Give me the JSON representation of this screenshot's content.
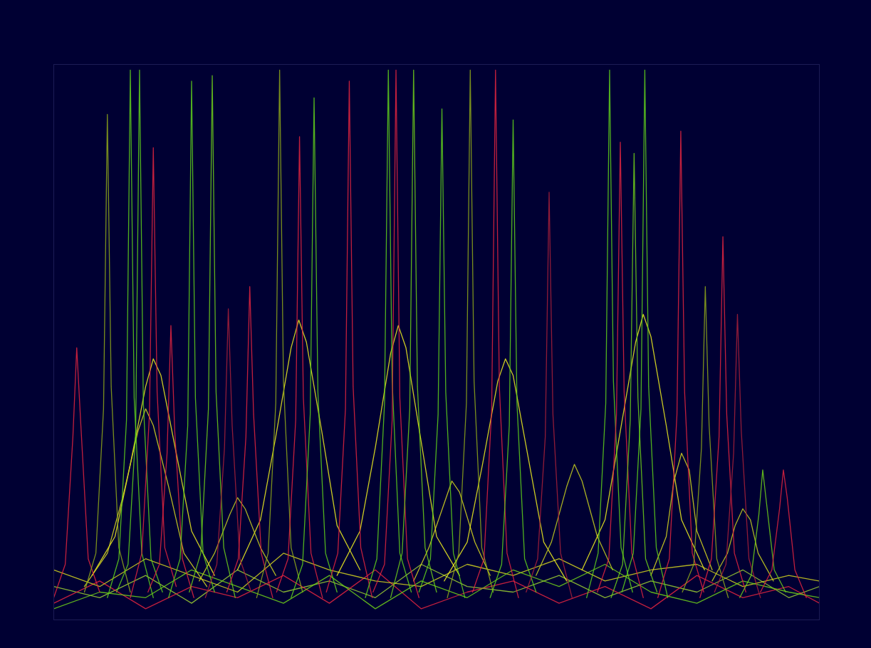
{
  "chart_data": {
    "type": "line",
    "xlim": [
      0,
      100
    ],
    "ylim": [
      0,
      100
    ],
    "tick_labels": false,
    "series": [
      {
        "color": "#9acd32",
        "x": [
          0,
          6,
          12,
          18,
          24,
          30,
          36,
          42,
          48,
          54,
          60,
          66,
          72,
          78,
          84,
          90,
          96,
          100
        ],
        "values": [
          6,
          4,
          8,
          3,
          9,
          5,
          7,
          4,
          10,
          6,
          5,
          8,
          4,
          7,
          5,
          9,
          4,
          6
        ]
      },
      {
        "color": "#e3243f",
        "x": [
          0,
          6,
          12,
          18,
          24,
          30,
          36,
          42,
          48,
          54,
          60,
          66,
          72,
          78,
          84,
          90,
          96,
          100
        ],
        "values": [
          3,
          7,
          2,
          6,
          4,
          8,
          3,
          9,
          2,
          5,
          7,
          3,
          6,
          2,
          8,
          4,
          6,
          3
        ]
      },
      {
        "color": "#d4d420",
        "x": [
          0,
          6,
          12,
          18,
          24,
          30,
          36,
          42,
          48,
          54,
          60,
          66,
          72,
          78,
          84,
          90,
          96,
          100
        ],
        "values": [
          9,
          6,
          11,
          8,
          5,
          12,
          9,
          7,
          6,
          10,
          8,
          11,
          7,
          9,
          10,
          6,
          8,
          7
        ]
      },
      {
        "color": "#6fcf1a",
        "x": [
          0,
          6,
          12,
          18,
          24,
          30,
          36,
          42,
          48,
          54,
          60,
          66,
          72,
          78,
          84,
          90,
          96,
          100
        ],
        "values": [
          2,
          5,
          4,
          9,
          6,
          3,
          8,
          2,
          7,
          4,
          9,
          6,
          10,
          5,
          3,
          7,
          5,
          4
        ]
      },
      {
        "color": "#f0f020",
        "x": [
          5,
          8,
          10,
          12,
          13,
          14,
          16,
          18,
          21
        ],
        "values": [
          8,
          15,
          28,
          42,
          47,
          44,
          30,
          16,
          8
        ]
      },
      {
        "color": "#d8d820",
        "x": [
          4,
          7,
          9,
          11,
          12,
          13,
          15,
          17,
          20
        ],
        "values": [
          6,
          12,
          22,
          34,
          38,
          35,
          24,
          12,
          6
        ]
      },
      {
        "color": "#f0f020",
        "x": [
          24,
          27,
          29,
          31,
          32,
          33,
          35,
          37,
          40
        ],
        "values": [
          9,
          18,
          33,
          49,
          54,
          50,
          34,
          17,
          9
        ]
      },
      {
        "color": "#c8d020",
        "x": [
          19,
          21,
          23,
          24,
          25,
          27,
          29
        ],
        "values": [
          7,
          12,
          19,
          22,
          20,
          13,
          8
        ]
      },
      {
        "color": "#f0f020",
        "x": [
          37,
          40,
          42,
          44,
          45,
          46,
          48,
          50,
          53
        ],
        "values": [
          8,
          16,
          31,
          48,
          53,
          49,
          32,
          15,
          8
        ]
      },
      {
        "color": "#d8d820",
        "x": [
          47,
          49,
          51,
          52,
          53,
          55,
          57
        ],
        "values": [
          7,
          13,
          21,
          25,
          23,
          14,
          8
        ]
      },
      {
        "color": "#f0f020",
        "x": [
          51,
          54,
          56,
          58,
          59,
          60,
          62,
          64,
          67
        ],
        "values": [
          7,
          14,
          28,
          43,
          47,
          44,
          29,
          14,
          7
        ]
      },
      {
        "color": "#c8d020",
        "x": [
          63,
          65,
          67,
          68,
          69,
          71,
          73
        ],
        "values": [
          8,
          14,
          24,
          28,
          25,
          15,
          9
        ]
      },
      {
        "color": "#f0f020",
        "x": [
          69,
          72,
          74,
          76,
          77,
          78,
          80,
          82,
          85
        ],
        "values": [
          9,
          18,
          34,
          50,
          55,
          51,
          35,
          18,
          9
        ]
      },
      {
        "color": "#d8d820",
        "x": [
          78,
          80,
          81,
          82,
          83,
          84,
          86
        ],
        "values": [
          8,
          15,
          25,
          30,
          27,
          16,
          9
        ]
      },
      {
        "color": "#c8d020",
        "x": [
          86,
          88,
          89,
          90,
          91,
          92,
          94
        ],
        "values": [
          7,
          12,
          17,
          20,
          18,
          12,
          7
        ]
      },
      {
        "color": "#e3243f",
        "x": [
          0,
          1.5,
          2.5,
          3,
          3.5,
          4.5,
          6
        ],
        "values": [
          4,
          10,
          33,
          49,
          36,
          11,
          5
        ]
      },
      {
        "color": "#8fa81a",
        "x": [
          4,
          5.5,
          6.5,
          7,
          7.5,
          8.5,
          10
        ],
        "values": [
          5,
          12,
          38,
          91,
          42,
          13,
          5
        ]
      },
      {
        "color": "#5fd01c",
        "x": [
          7,
          8.5,
          9.5,
          10,
          10.5,
          11.5,
          13
        ],
        "values": [
          4,
          11,
          36,
          99,
          40,
          12,
          4
        ]
      },
      {
        "color": "#5fd01c",
        "x": [
          8.2,
          9.7,
          10.7,
          11.2,
          11.7,
          12.7,
          14.2
        ],
        "values": [
          5,
          10,
          34,
          99,
          39,
          11,
          5
        ]
      },
      {
        "color": "#e3243f",
        "x": [
          10,
          11.5,
          12.5,
          13,
          13.5,
          14.5,
          16
        ],
        "values": [
          4,
          12,
          37,
          85,
          41,
          13,
          6
        ]
      },
      {
        "color": "#e3243f",
        "x": [
          12.3,
          13.8,
          14.8,
          15.3,
          15.8,
          16.8,
          18.3
        ],
        "values": [
          5,
          10,
          30,
          53,
          34,
          11,
          4
        ]
      },
      {
        "color": "#5fd01c",
        "x": [
          15,
          16.5,
          17.5,
          18,
          18.5,
          19.5,
          21
        ],
        "values": [
          4,
          11,
          35,
          97,
          40,
          12,
          5
        ]
      },
      {
        "color": "#6fcf1a",
        "x": [
          17.7,
          19.2,
          20.2,
          20.7,
          21.2,
          22.2,
          23.7
        ],
        "values": [
          5,
          12,
          38,
          98,
          41,
          13,
          4
        ]
      },
      {
        "color": "#a8203a",
        "x": [
          19.8,
          21.3,
          22.3,
          22.8,
          23.3,
          24.3,
          25.8
        ],
        "values": [
          4,
          10,
          31,
          56,
          35,
          11,
          5
        ]
      },
      {
        "color": "#e3243f",
        "x": [
          22.6,
          24.1,
          25.1,
          25.6,
          26.1,
          27.1,
          28.6
        ],
        "values": [
          5,
          11,
          33,
          60,
          37,
          12,
          4
        ]
      },
      {
        "color": "#8fa81a",
        "x": [
          26.5,
          28,
          29,
          29.5,
          30,
          31,
          32.5
        ],
        "values": [
          4,
          12,
          39,
          99,
          43,
          13,
          5
        ]
      },
      {
        "color": "#e3243f",
        "x": [
          29.1,
          30.6,
          31.6,
          32.1,
          32.6,
          33.6,
          35.1
        ],
        "values": [
          5,
          11,
          36,
          87,
          40,
          12,
          4
        ]
      },
      {
        "color": "#5fd01c",
        "x": [
          31,
          32.5,
          33.5,
          34,
          34.5,
          35.5,
          37
        ],
        "values": [
          4,
          10,
          37,
          94,
          41,
          12,
          5
        ]
      },
      {
        "color": "#e3243f",
        "x": [
          35.6,
          37.1,
          38.1,
          38.6,
          39.1,
          40.1,
          41.6
        ],
        "values": [
          5,
          12,
          38,
          97,
          42,
          13,
          4
        ]
      },
      {
        "color": "#5fd01c",
        "x": [
          40.7,
          42.2,
          43.2,
          43.7,
          44.2,
          45.2,
          46.7
        ],
        "values": [
          4,
          11,
          39,
          99,
          43,
          12,
          5
        ]
      },
      {
        "color": "#e3243f",
        "x": [
          41.7,
          43.2,
          44.2,
          44.7,
          45.2,
          46.2,
          47.7
        ],
        "values": [
          5,
          10,
          36,
          99,
          40,
          11,
          4
        ]
      },
      {
        "color": "#6fcf1a",
        "x": [
          44,
          45.5,
          46.5,
          47,
          47.5,
          48.5,
          50
        ],
        "values": [
          4,
          12,
          38,
          99,
          42,
          13,
          5
        ]
      },
      {
        "color": "#5fd01c",
        "x": [
          47.7,
          49.2,
          50.2,
          50.7,
          51.2,
          52.2,
          53.7
        ],
        "values": [
          5,
          11,
          37,
          92,
          41,
          12,
          4
        ]
      },
      {
        "color": "#8fa81a",
        "x": [
          51.4,
          52.9,
          53.9,
          54.4,
          54.9,
          55.9,
          57.4
        ],
        "values": [
          4,
          12,
          39,
          99,
          43,
          13,
          5
        ]
      },
      {
        "color": "#e3243f",
        "x": [
          54.7,
          56.2,
          57.2,
          57.7,
          58.2,
          59.2,
          60.7
        ],
        "values": [
          5,
          11,
          38,
          99,
          42,
          12,
          4
        ]
      },
      {
        "color": "#5fd01c",
        "x": [
          57,
          58.5,
          59.5,
          60,
          60.5,
          61.5,
          63
        ],
        "values": [
          4,
          10,
          35,
          90,
          39,
          11,
          5
        ]
      },
      {
        "color": "#a8203a",
        "x": [
          61.7,
          63.2,
          64.2,
          64.7,
          65.2,
          66.2,
          67.7
        ],
        "values": [
          5,
          11,
          33,
          77,
          37,
          12,
          4
        ]
      },
      {
        "color": "#5fd01c",
        "x": [
          69.6,
          71.1,
          72.1,
          72.6,
          73.1,
          74.1,
          75.6
        ],
        "values": [
          4,
          12,
          39,
          99,
          43,
          13,
          5
        ]
      },
      {
        "color": "#e3243f",
        "x": [
          71,
          72.5,
          73.5,
          74,
          74.5,
          75.5,
          77
        ],
        "values": [
          5,
          11,
          37,
          86,
          41,
          12,
          4
        ]
      },
      {
        "color": "#6fcf1a",
        "x": [
          72.8,
          74.3,
          75.3,
          75.8,
          76.3,
          77.3,
          78.8
        ],
        "values": [
          4,
          10,
          36,
          84,
          40,
          11,
          5
        ]
      },
      {
        "color": "#5fd01c",
        "x": [
          74.2,
          75.7,
          76.7,
          77.2,
          77.7,
          78.7,
          80.2
        ],
        "values": [
          5,
          12,
          38,
          99,
          42,
          13,
          4
        ]
      },
      {
        "color": "#e3243f",
        "x": [
          78.9,
          80.4,
          81.4,
          81.9,
          82.4,
          83.4,
          84.9
        ],
        "values": [
          4,
          11,
          37,
          88,
          41,
          12,
          5
        ]
      },
      {
        "color": "#8fa81a",
        "x": [
          82.1,
          83.6,
          84.6,
          85.1,
          85.6,
          86.6,
          88.1
        ],
        "values": [
          5,
          10,
          31,
          60,
          35,
          11,
          4
        ]
      },
      {
        "color": "#e3243f",
        "x": [
          84.4,
          85.9,
          86.9,
          87.4,
          87.9,
          88.9,
          90.4
        ],
        "values": [
          4,
          11,
          33,
          69,
          37,
          12,
          5
        ]
      },
      {
        "color": "#a8203a",
        "x": [
          86.3,
          87.8,
          88.8,
          89.3,
          89.8,
          90.8,
          92.3
        ],
        "values": [
          5,
          10,
          30,
          55,
          34,
          11,
          4
        ]
      },
      {
        "color": "#6fcf1a",
        "x": [
          89.6,
          91.1,
          92.1,
          92.6,
          93.1,
          94.1,
          95.6
        ],
        "values": [
          4,
          8,
          19,
          27,
          21,
          9,
          5
        ]
      },
      {
        "color": "#e3243f",
        "x": [
          92.3,
          93.8,
          94.8,
          95.3,
          95.8,
          96.8,
          98.3
        ],
        "values": [
          5,
          9,
          20,
          27,
          22,
          9,
          4
        ]
      }
    ]
  }
}
